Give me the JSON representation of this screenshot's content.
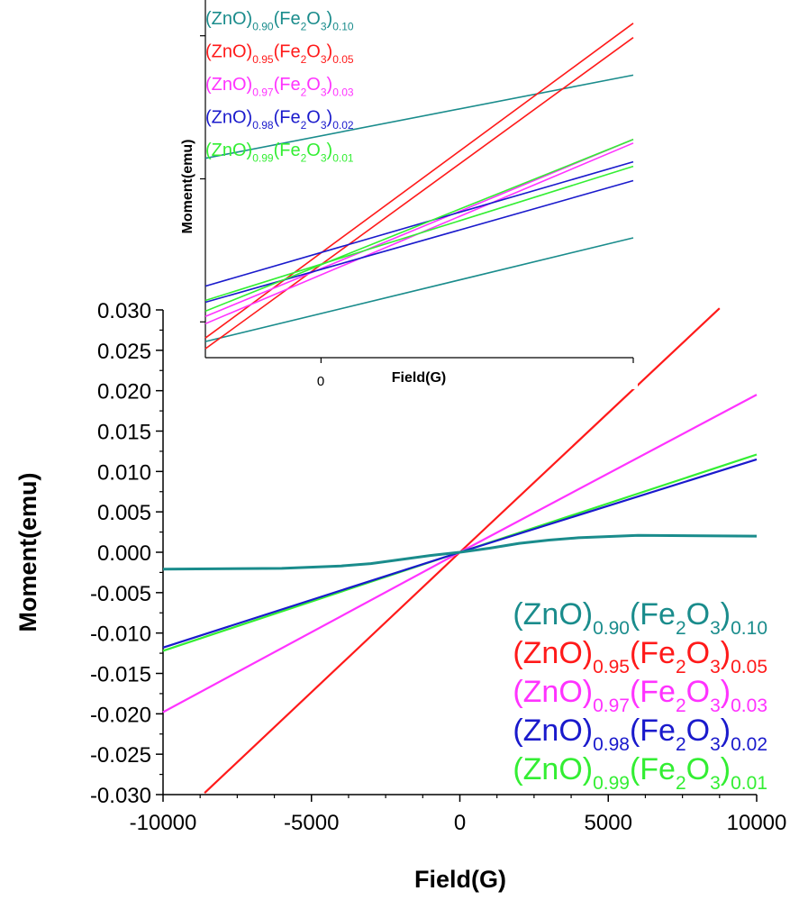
{
  "chart_data": [
    {
      "type": "line",
      "xlabel": "Field(G)",
      "ylabel": "Moment(emu)",
      "xlim": [
        -10000,
        10000
      ],
      "ylim": [
        -0.03,
        0.03
      ],
      "x_ticks": [
        -10000,
        -5000,
        0,
        5000,
        10000
      ],
      "x_tick_labels": [
        "-10000",
        "-5000",
        "0",
        "5000",
        "10000"
      ],
      "y_ticks": [
        0.03,
        0.025,
        0.02,
        0.015,
        0.01,
        0.005,
        0,
        -0.005,
        -0.01,
        -0.015,
        -0.02,
        -0.025,
        -0.03
      ],
      "y_tick_labels": [
        "0.030",
        "0.025",
        "0.020",
        "0.015",
        "0.010",
        "0.005",
        "0.000",
        "-0.005",
        "-0.010",
        "-0.015",
        "-0.020",
        "-0.025",
        "-0.030"
      ],
      "grid": false,
      "legend_position": "bottom-right",
      "series": [
        {
          "name": "(ZnO)0.90(Fe2O3)0.10",
          "color": "#1a8c8c",
          "points": [
            [
              -10000,
              -0.0021
            ],
            [
              -6000,
              -0.002
            ],
            [
              -4000,
              -0.0017
            ],
            [
              -3000,
              -0.0014
            ],
            [
              -2000,
              -0.0009
            ],
            [
              -1000,
              -0.0004
            ],
            [
              0,
              0.0
            ],
            [
              1000,
              0.0005
            ],
            [
              2000,
              0.0011
            ],
            [
              3000,
              0.0015
            ],
            [
              4000,
              0.0018
            ],
            [
              6000,
              0.0021
            ],
            [
              10000,
              0.002
            ]
          ]
        },
        {
          "name": "(ZnO)0.95(Fe2O3)0.05",
          "color": "#ff1a1a",
          "points": [
            [
              -8600,
              -0.0298
            ],
            [
              0,
              0.0
            ],
            [
              8750,
              0.0302
            ]
          ]
        },
        {
          "name": "(ZnO)0.97(Fe2O3)0.03",
          "color": "#ff33ff",
          "points": [
            [
              -10000,
              -0.0198
            ],
            [
              0,
              0.0
            ],
            [
              10000,
              0.0195
            ]
          ]
        },
        {
          "name": "(ZnO)0.98(Fe2O3)0.02",
          "color": "#1a1acc",
          "points": [
            [
              -10000,
              -0.0118
            ],
            [
              0,
              0.0
            ],
            [
              10000,
              0.0115
            ]
          ]
        },
        {
          "name": "(ZnO)0.99(Fe2O3)0.01",
          "color": "#33ee33",
          "points": [
            [
              -10000,
              -0.0122
            ],
            [
              0,
              0.0
            ],
            [
              10000,
              0.0121
            ]
          ]
        }
      ],
      "legend": [
        {
          "base": "(ZnO)",
          "s1": "0.90",
          "mid": "(Fe",
          "sub2": "2",
          "o": "O",
          "sub3": "3",
          "close": ")",
          "s2": "0.10",
          "color": "#1a8c8c"
        },
        {
          "base": "(ZnO)",
          "s1": "0.95",
          "mid": "(Fe",
          "sub2": "2",
          "o": "O",
          "sub3": "3",
          "close": ")",
          "s2": "0.05",
          "color": "#ff1a1a"
        },
        {
          "base": "(ZnO)",
          "s1": "0.97",
          "mid": "(Fe",
          "sub2": "2",
          "o": "O",
          "sub3": "3",
          "close": ")",
          "s2": "0.03",
          "color": "#ff33ff"
        },
        {
          "base": "(ZnO)",
          "s1": "0.98",
          "mid": "(Fe",
          "sub2": "2",
          "o": "O",
          "sub3": "3",
          "close": ")",
          "s2": "0.02",
          "color": "#1a1acc"
        },
        {
          "base": "(ZnO)",
          "s1": "0.99",
          "mid": "(Fe",
          "sub2": "2",
          "o": "O",
          "sub3": "3",
          "close": ")",
          "s2": "0.01",
          "color": "#33ee33"
        }
      ]
    },
    {
      "type": "line",
      "role": "inset (zoomed hysteresis loops near zero field)",
      "xlabel": "Field(G)",
      "ylabel": "Moment(emu)",
      "x_tick_labels": [
        "0"
      ],
      "x_tick_label_value": 0,
      "xlim": [
        -100,
        270
      ],
      "ylim": [
        -1.0,
        1.0
      ],
      "grid": false,
      "legend_position": "top-left",
      "series": [
        {
          "name": "(ZnO)0.90(Fe2O3)0.10",
          "color": "#1a8c8c",
          "loops": [
            [
              [
                -100,
                0.115
              ],
              [
                270,
                0.58
              ]
            ],
            [
              [
                -100,
                -0.91
              ],
              [
                270,
                -0.33
              ]
            ]
          ]
        },
        {
          "name": "(ZnO)0.95(Fe2O3)0.05",
          "color": "#ff1a1a",
          "loops": [
            [
              [
                -100,
                -0.89
              ],
              [
                270,
                0.87
              ]
            ],
            [
              [
                -100,
                -0.95
              ],
              [
                270,
                0.79
              ]
            ]
          ]
        },
        {
          "name": "(ZnO)0.97(Fe2O3)0.03",
          "color": "#ff33ff",
          "loops": [
            [
              [
                -100,
                -0.77
              ],
              [
                270,
                0.22
              ]
            ],
            [
              [
                -100,
                -0.81
              ],
              [
                270,
                0.2
              ]
            ]
          ]
        },
        {
          "name": "(ZnO)0.98(Fe2O3)0.02",
          "color": "#1a1acc",
          "loops": [
            [
              [
                -100,
                -0.6
              ],
              [
                270,
                0.095
              ]
            ],
            [
              [
                -100,
                -0.69
              ],
              [
                270,
                -0.01
              ]
            ]
          ]
        },
        {
          "name": "(ZnO)0.99(Fe2O3)0.01",
          "color": "#33ee33",
          "loops": [
            [
              [
                -100,
                -0.68
              ],
              [
                270,
                0.07
              ]
            ],
            [
              [
                -100,
                -0.74
              ],
              [
                270,
                0.22
              ]
            ]
          ]
        }
      ],
      "legend": [
        {
          "base": "(ZnO)",
          "s1": "0.90",
          "mid": "(Fe",
          "sub2": "2",
          "o": "O",
          "sub3": "3",
          "close": ")",
          "s2": "0.10",
          "color": "#1a8c8c"
        },
        {
          "base": "(ZnO)",
          "s1": "0.95",
          "mid": "(Fe",
          "sub2": "2",
          "o": "O",
          "sub3": "3",
          "close": ")",
          "s2": "0.05",
          "color": "#ff1a1a"
        },
        {
          "base": "(ZnO)",
          "s1": "0.97",
          "mid": "(Fe",
          "sub2": "2",
          "o": "O",
          "sub3": "3",
          "close": ")",
          "s2": "0.03",
          "color": "#ff33ff"
        },
        {
          "base": "(ZnO)",
          "s1": "0.98",
          "mid": "(Fe",
          "sub2": "2",
          "o": "O",
          "sub3": "3",
          "close": ")",
          "s2": "0.02",
          "color": "#1a1acc"
        },
        {
          "base": "(ZnO)",
          "s1": "0.99",
          "mid": "(Fe",
          "sub2": "2",
          "o": "O",
          "sub3": "3",
          "close": ")",
          "s2": "0.01",
          "color": "#33ee33"
        }
      ]
    }
  ]
}
